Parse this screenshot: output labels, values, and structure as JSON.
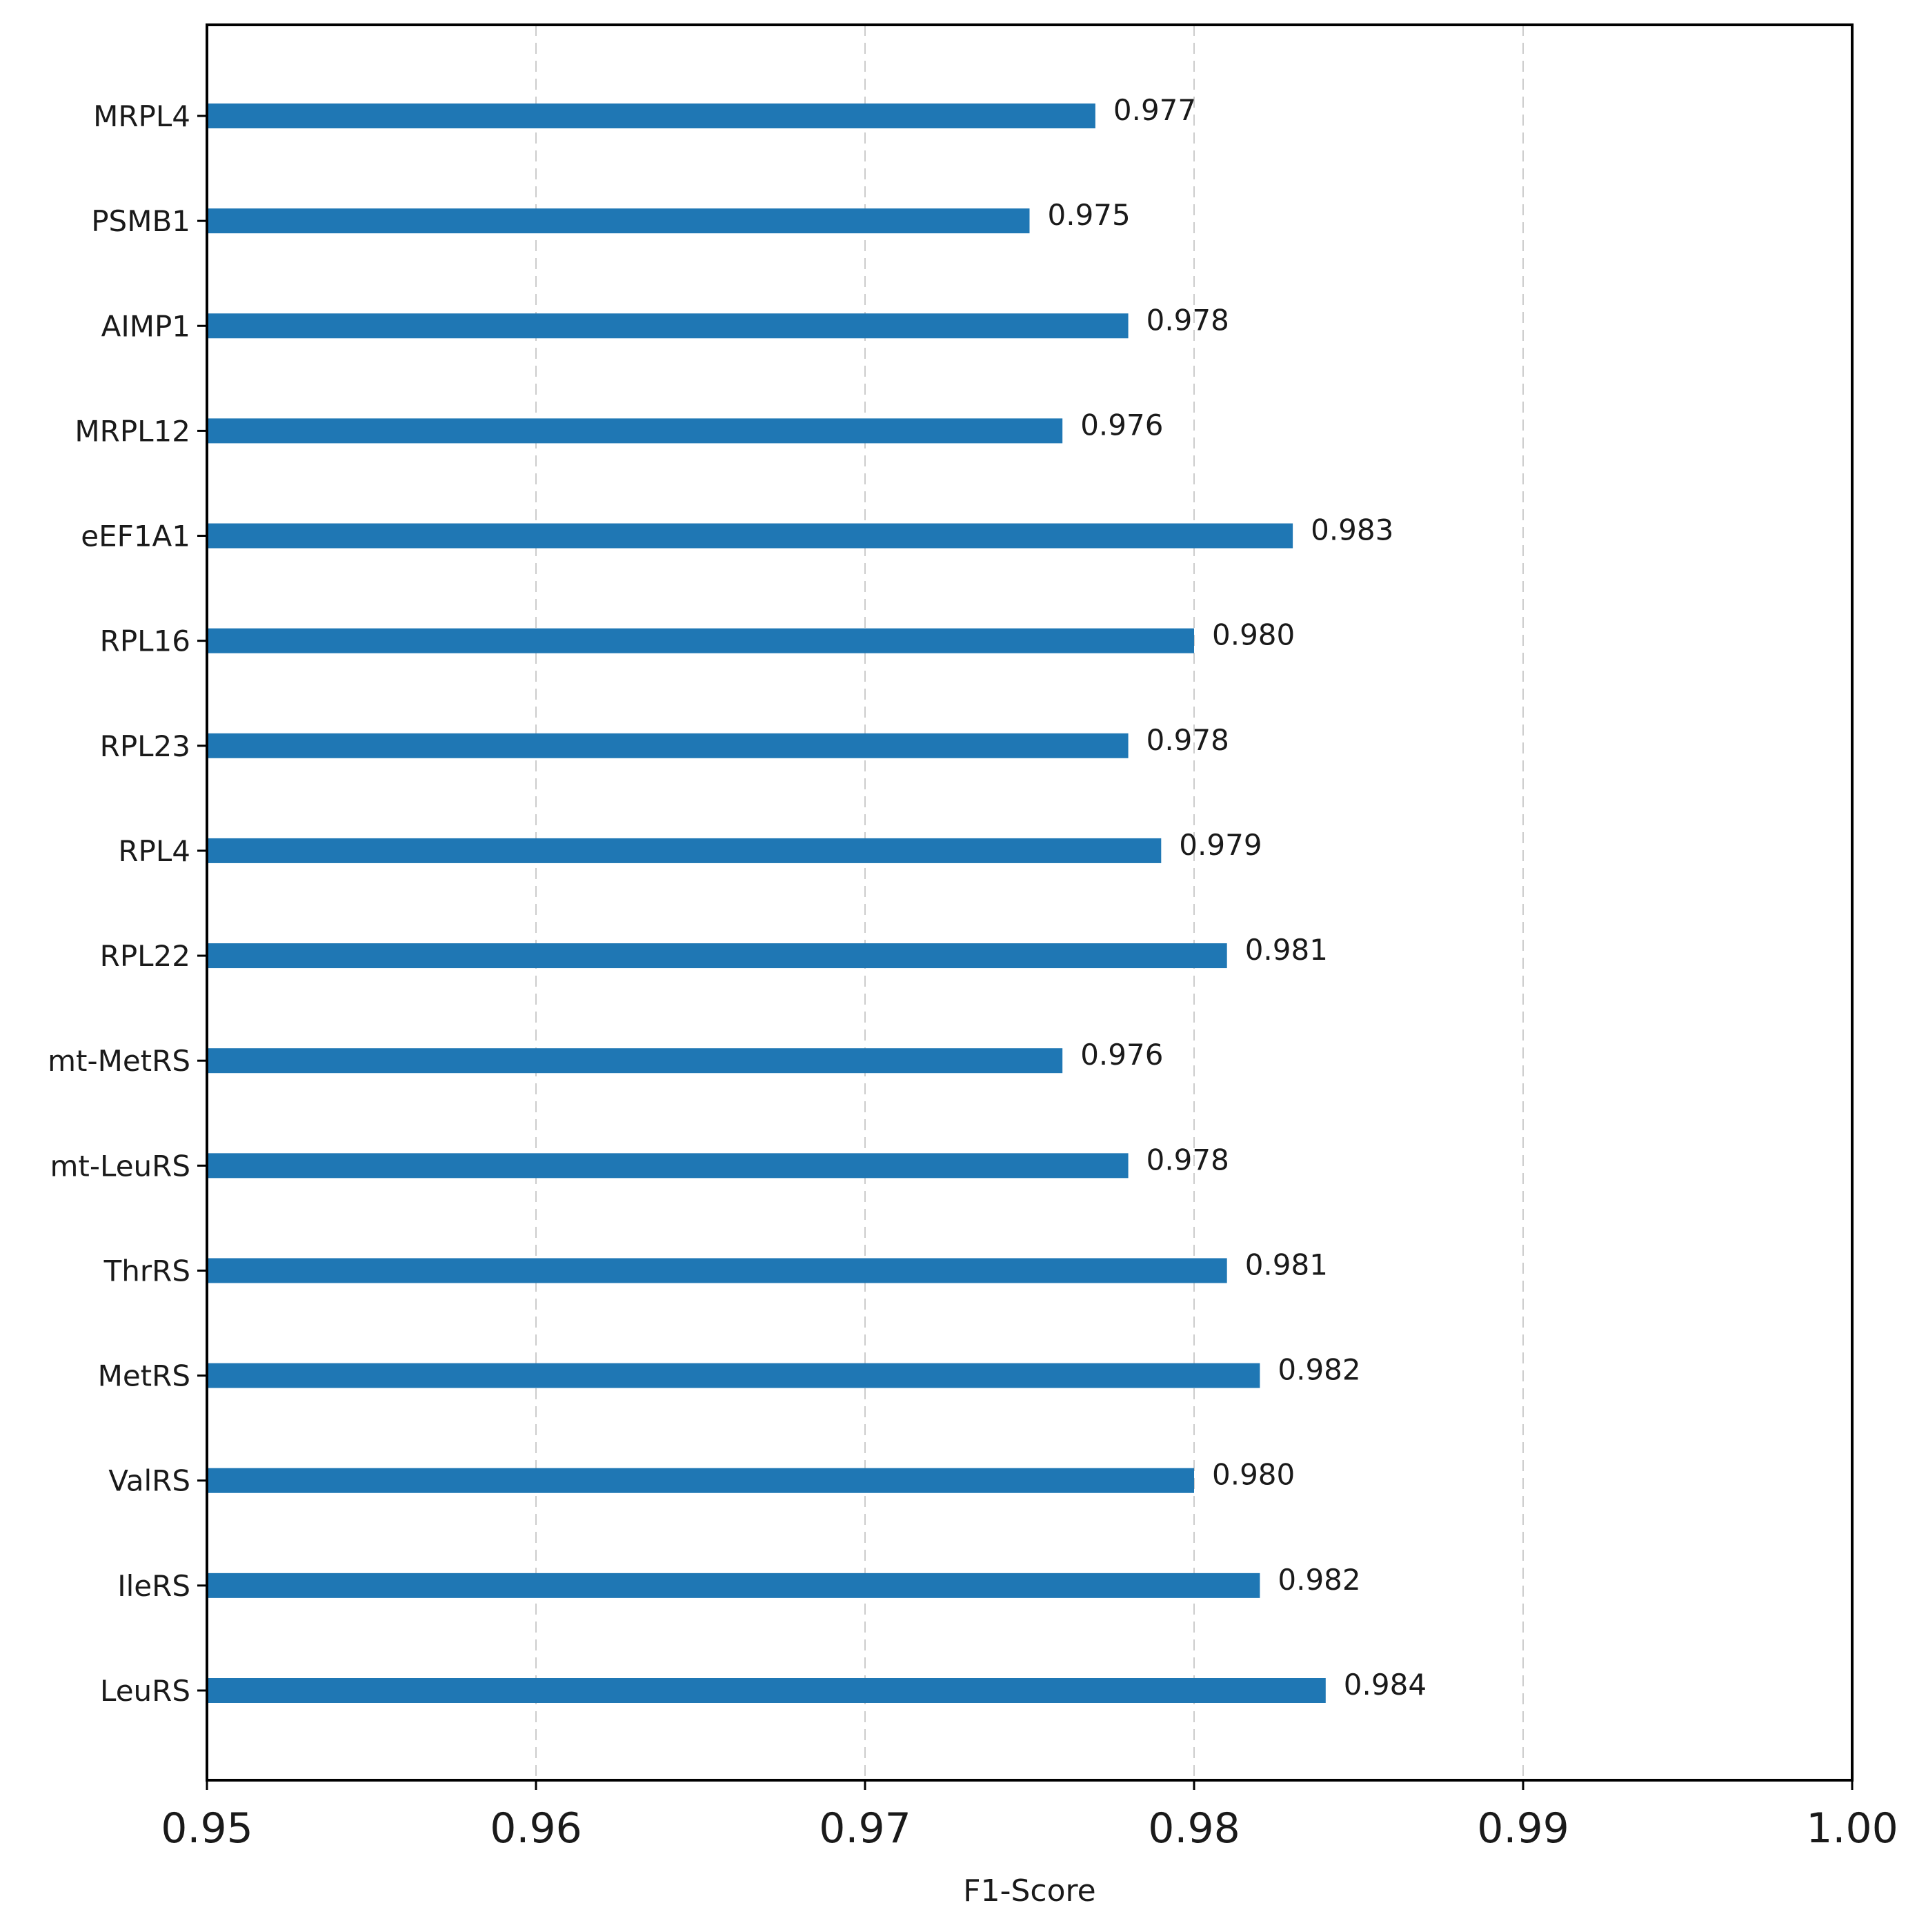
{
  "chart_data": {
    "type": "bar",
    "orientation": "horizontal",
    "categories": [
      "MRPL4",
      "PSMB1",
      "AIMP1",
      "MRPL12",
      "eEF1A1",
      "RPL16",
      "RPL23",
      "RPL4",
      "RPL22",
      "mt-MetRS",
      "mt-LeuRS",
      "ThrRS",
      "MetRS",
      "ValRS",
      "IleRS",
      "LeuRS"
    ],
    "values": [
      0.977,
      0.975,
      0.978,
      0.976,
      0.983,
      0.98,
      0.978,
      0.979,
      0.981,
      0.976,
      0.978,
      0.981,
      0.982,
      0.98,
      0.982,
      0.984
    ],
    "value_labels": [
      "0.977",
      "0.975",
      "0.978",
      "0.976",
      "0.983",
      "0.980",
      "0.978",
      "0.979",
      "0.981",
      "0.976",
      "0.978",
      "0.981",
      "0.982",
      "0.980",
      "0.982",
      "0.984"
    ],
    "xlabel": "F1-Score",
    "ylabel": "",
    "title": "",
    "xlim": [
      0.95,
      1.0
    ],
    "xticks": [
      0.95,
      0.96,
      0.97,
      0.98,
      0.99,
      1.0
    ],
    "xtick_labels": [
      "0.95",
      "0.96",
      "0.97",
      "0.98",
      "0.99",
      "1.00"
    ],
    "grid": "x, dashed",
    "bar_color": "#1f77b4"
  }
}
